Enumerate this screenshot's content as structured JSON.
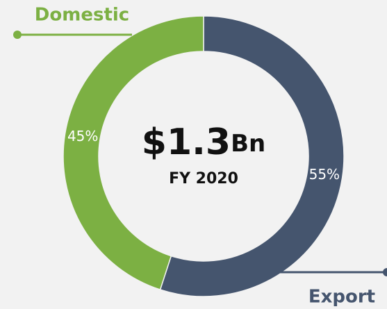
{
  "chart_data": {
    "type": "donut",
    "categories": [
      "Export",
      "Domestic"
    ],
    "values": [
      55,
      45
    ],
    "value_labels": [
      "55%",
      "45%"
    ],
    "colors": [
      "#45556e",
      "#7cb043"
    ],
    "center_value": "$1.3",
    "center_unit": "Bn",
    "center_subtitle": "FY 2020"
  }
}
